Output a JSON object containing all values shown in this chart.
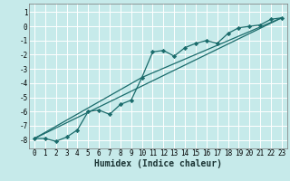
{
  "title": "",
  "xlabel": "Humidex (Indice chaleur)",
  "ylabel": "",
  "background_color": "#c6eaea",
  "grid_color": "#ffffff",
  "line_color": "#1a6b6b",
  "marker_color": "#1a6b6b",
  "xlim": [
    -0.5,
    23.5
  ],
  "ylim": [
    -8.6,
    1.6
  ],
  "xticks": [
    0,
    1,
    2,
    3,
    4,
    5,
    6,
    7,
    8,
    9,
    10,
    11,
    12,
    13,
    14,
    15,
    16,
    17,
    18,
    19,
    20,
    21,
    22,
    23
  ],
  "yticks": [
    1,
    0,
    -1,
    -2,
    -3,
    -4,
    -5,
    -6,
    -7,
    -8
  ],
  "series1_x": [
    0,
    1,
    2,
    3,
    4,
    5,
    6,
    7,
    8,
    9,
    10,
    11,
    12,
    13,
    14,
    15,
    16,
    17,
    18,
    19,
    20,
    21,
    22,
    23
  ],
  "series1_y": [
    -7.9,
    -7.9,
    -8.1,
    -7.8,
    -7.3,
    -6.0,
    -5.9,
    -6.2,
    -5.5,
    -5.2,
    -3.6,
    -1.8,
    -1.7,
    -2.1,
    -1.5,
    -1.2,
    -1.0,
    -1.2,
    -0.5,
    -0.1,
    0.0,
    0.1,
    0.5,
    0.6
  ],
  "series2_x": [
    0,
    23
  ],
  "series2_y": [
    -7.9,
    0.6
  ],
  "series3_x": [
    0,
    10,
    23
  ],
  "series3_y": [
    -7.9,
    -3.6,
    0.6
  ]
}
